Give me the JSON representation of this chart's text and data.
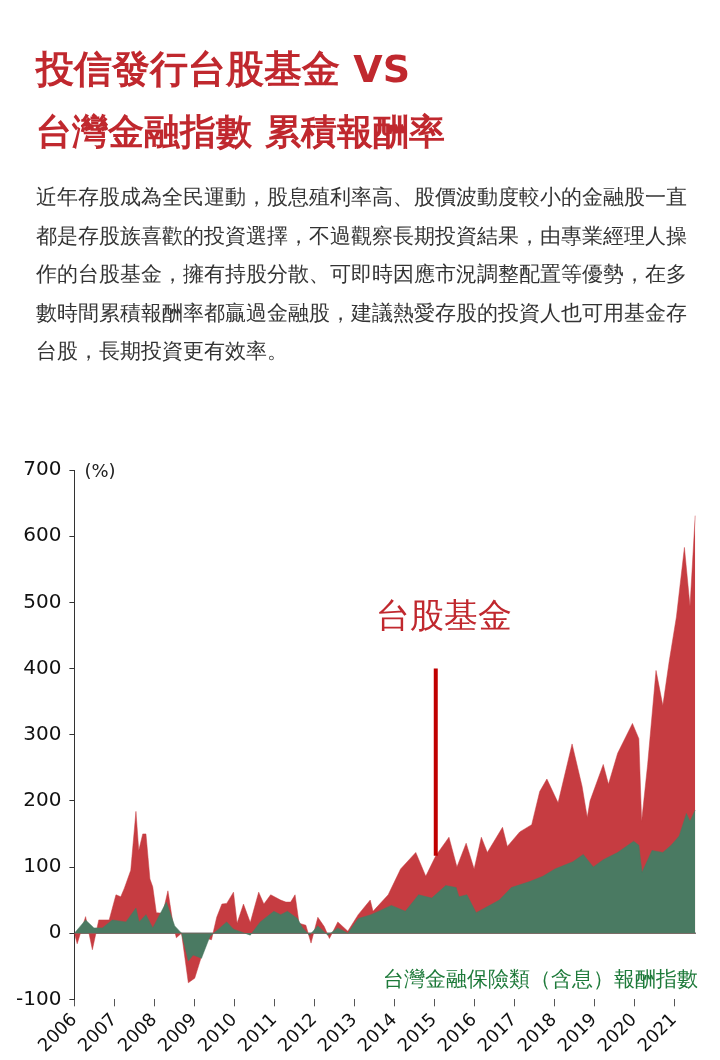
{
  "chart_data": {
    "type": "area",
    "title": "投信發行台股基金 VS",
    "subtitle": "台灣金融指數 累積報酬率",
    "annotations": [
      "近年存股成為全民運動，股息殖利率高、股價波動度較小的金融股一直都是存股族喜歡的投資選擇，不過觀察長期投資結果，由專業經理人操作的台股基金，擁有持股分散、可即時因應市況調整配置等優勢，在多數時間累積報酬率都贏過金融股，建議熱愛存股的投資人也可用基金存台股，長期投資更有效率。",
      {
        "text": "台股基金",
        "x": 2015.04,
        "y": 117
      }
    ],
    "ylabel": "(%)",
    "xlim": [
      2006,
      2021.55
    ],
    "xticks": [
      2006,
      2007,
      2008,
      2009,
      2010,
      2011,
      2012,
      2013,
      2014,
      2015,
      2016,
      2017,
      2018,
      2019,
      2020,
      2021
    ],
    "ylim": [
      -100,
      700
    ],
    "yticks": [
      -100,
      0,
      100,
      200,
      300,
      400,
      500,
      600,
      700
    ],
    "grid": false,
    "legend": false,
    "ref_lines": [
      {
        "axis": "y",
        "value": 0,
        "color": "#333333"
      }
    ],
    "series": [
      {
        "color": "#c63c41",
        "x": [
          2006,
          2006.07,
          2006.28,
          2006.45,
          2006.61,
          2006.87,
          2007.04,
          2007.16,
          2007.25,
          2007.41,
          2007.54,
          2007.61,
          2007.71,
          2007.79,
          2007.89,
          2007.96,
          2008.05,
          2008.21,
          2008.34,
          2008.47,
          2008.55,
          2008.68,
          2008.85,
          2009.01,
          2009.14,
          2009.31,
          2009.43,
          2009.56,
          2009.69,
          2009.81,
          2009.98,
          2010.07,
          2010.23,
          2010.4,
          2010.61,
          2010.74,
          2010.91,
          2011.16,
          2011.29,
          2011.41,
          2011.52,
          2011.62,
          2011.79,
          2011.92,
          2012.09,
          2012.25,
          2012.38,
          2012.59,
          2012.84,
          2013.1,
          2013.4,
          2013.47,
          2013.85,
          2014.16,
          2014.54,
          2014.79,
          2015.04,
          2015.37,
          2015.57,
          2015.8,
          2016,
          2016.18,
          2016.33,
          2016.71,
          2016.83,
          2017.14,
          2017.44,
          2017.64,
          2017.82,
          2018.1,
          2018.45,
          2018.7,
          2018.83,
          2018.9,
          2019.23,
          2019.36,
          2019.59,
          2019.96,
          2020.12,
          2020.19,
          2020.34,
          2020.55,
          2020.72,
          2020.88,
          2021.06,
          2021.26,
          2021.4,
          2021.53
        ],
        "values": [
          0,
          -16,
          25,
          -25,
          20,
          20,
          58,
          55,
          68,
          95,
          184,
          125,
          150,
          150,
          82,
          70,
          31,
          30,
          64,
          13,
          -7,
          0,
          -75,
          -68,
          -43,
          -8,
          -10,
          24,
          44,
          45,
          62,
          15,
          44,
          16,
          62,
          44,
          58,
          50,
          47,
          47,
          58,
          15,
          12,
          -15,
          24,
          10,
          -8,
          17,
          3,
          28,
          50,
          33,
          58,
          97,
          122,
          86,
          117,
          145,
          100,
          136,
          97,
          145,
          122,
          160,
          131,
          153,
          164,
          214,
          233,
          197,
          286,
          222,
          175,
          200,
          255,
          225,
          272,
          317,
          294,
          169,
          255,
          397,
          344,
          411,
          478,
          583,
          494,
          631
        ]
      },
      {
        "name": "台灣金融保險類（含息）報酬指數",
        "color": "#4a7a62",
        "x": [
          2006,
          2006.28,
          2006.49,
          2006.7,
          2006.95,
          2007.29,
          2007.54,
          2007.62,
          2007.79,
          2007.96,
          2008.3,
          2008.51,
          2008.68,
          2008.85,
          2008.97,
          2009.18,
          2009.39,
          2009.64,
          2009.81,
          2009.98,
          2010.4,
          2010.65,
          2010.99,
          2011.16,
          2011.33,
          2011.58,
          2011.71,
          2011.88,
          2012.09,
          2012.34,
          2012.59,
          2012.84,
          2013.1,
          2013.42,
          2013.93,
          2014.28,
          2014.61,
          2014.94,
          2015.29,
          2015.55,
          2015.62,
          2015.82,
          2016.05,
          2016.3,
          2016.63,
          2016.93,
          2017.39,
          2017.72,
          2018.02,
          2018.47,
          2018.73,
          2018.98,
          2019.23,
          2019.59,
          2019.99,
          2020.12,
          2020.2,
          2020.45,
          2020.72,
          2020.93,
          2021.13,
          2021.31,
          2021.4,
          2021.53
        ],
        "values": [
          0,
          20,
          8,
          8,
          20,
          17,
          38,
          17,
          28,
          8,
          47,
          11,
          0,
          -42,
          -33,
          -38,
          -5,
          8,
          17,
          6,
          -3,
          17,
          33,
          28,
          33,
          22,
          8,
          -3,
          11,
          -3,
          8,
          0,
          22,
          28,
          42,
          33,
          58,
          53,
          72,
          69,
          55,
          58,
          31,
          39,
          50,
          69,
          78,
          86,
          97,
          108,
          119,
          100,
          111,
          122,
          139,
          133,
          92,
          125,
          122,
          133,
          147,
          181,
          169,
          186
        ]
      }
    ]
  }
}
